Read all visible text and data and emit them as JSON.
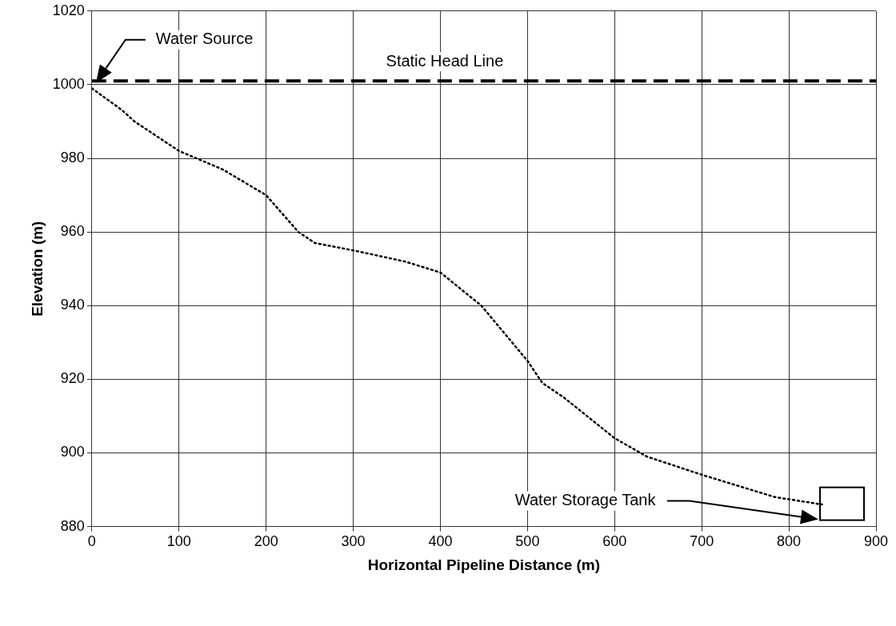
{
  "chart_data": {
    "type": "line",
    "xlabel": "Horizontal Pipeline Distance (m)",
    "ylabel": "Elevation (m)",
    "xlim": [
      0,
      900
    ],
    "xticks": [
      0,
      100,
      200,
      300,
      400,
      500,
      600,
      700,
      800,
      900
    ],
    "ylim": [
      880,
      1020
    ],
    "yticks": [
      880,
      900,
      920,
      940,
      960,
      980,
      1000,
      1020
    ],
    "grid": true,
    "legend": false,
    "marker": "none",
    "line_style": "dotted",
    "series": [
      {
        "color": "#000000",
        "x": [
          0,
          6,
          35,
          49,
          100,
          150,
          200,
          237,
          256,
          300,
          359,
          400,
          447,
          500,
          517,
          542,
          600,
          637,
          701,
          784,
          838
        ],
        "values": [
          999,
          998,
          993,
          990,
          982,
          977,
          970,
          960,
          957,
          955,
          952,
          949,
          940,
          925,
          919,
          915,
          904,
          899,
          894,
          888,
          886
        ]
      }
    ],
    "ref_lines": [
      {
        "axis": "y",
        "value": 1001,
        "label": "Static Head Line",
        "color": "#000000",
        "line_style": "dashed"
      }
    ],
    "annotations": [
      "Water Source",
      "Water Storage Tank"
    ]
  }
}
